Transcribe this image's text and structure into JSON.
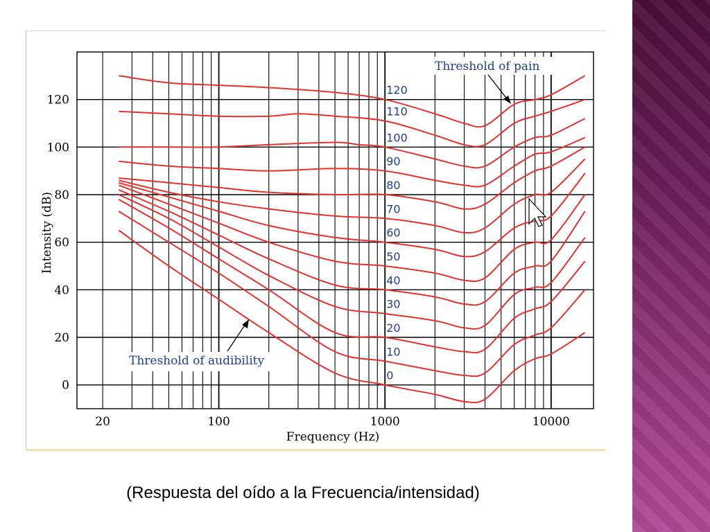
{
  "caption": "(Respuesta del oído a la Frecuencia/intensidad)",
  "colors": {
    "curve": "#e8302c",
    "annotation": "#1f3f9f",
    "grid": "#000000"
  },
  "chart_data": {
    "type": "line",
    "title": "",
    "xlabel": "Frequency (Hz)",
    "ylabel": "Intensity (dB)",
    "x_scale": "log",
    "xlim": [
      14,
      18000
    ],
    "ylim": [
      -10,
      140
    ],
    "x_tick_labels": [
      "20",
      "100",
      "1000",
      "10000"
    ],
    "x_ticks": [
      20,
      100,
      1000,
      10000
    ],
    "y_ticks": [
      0,
      20,
      40,
      60,
      80,
      100,
      120
    ],
    "y_tick_labels": [
      "0",
      "20",
      "40",
      "60",
      "80",
      "100",
      "120"
    ],
    "grid": true,
    "annotations": [
      "Threshold of pain",
      "Threshold of audibility"
    ],
    "series": [
      {
        "name": "120",
        "x": [
          25,
          50,
          100,
          200,
          500,
          1000,
          2000,
          3000,
          4000,
          6000,
          8000,
          10000,
          16000
        ],
        "values": [
          130,
          127,
          126,
          125,
          123,
          120,
          114,
          110,
          109,
          118,
          120,
          122,
          130
        ]
      },
      {
        "name": "110",
        "x": [
          25,
          50,
          100,
          200,
          300,
          500,
          1000,
          2000,
          3000,
          4000,
          6000,
          8000,
          10000,
          16000
        ],
        "values": [
          115,
          114,
          113,
          113,
          114,
          113,
          111,
          105,
          101,
          101,
          110,
          113,
          115,
          120
        ]
      },
      {
        "name": "100",
        "x": [
          25,
          50,
          100,
          200,
          500,
          700,
          1000,
          2000,
          3000,
          4000,
          6000,
          8000,
          10000,
          16000
        ],
        "values": [
          100,
          100,
          100,
          101,
          102,
          101,
          100,
          95,
          92,
          92,
          100,
          104,
          105,
          112
        ]
      },
      {
        "name": "90",
        "x": [
          25,
          50,
          100,
          200,
          500,
          1000,
          2000,
          3000,
          4000,
          6000,
          8000,
          10000,
          16000
        ],
        "values": [
          94,
          92,
          91,
          90,
          91,
          90,
          86,
          84,
          84,
          92,
          97,
          98,
          104
        ]
      },
      {
        "name": "80",
        "x": [
          25,
          50,
          100,
          200,
          500,
          1000,
          2000,
          3000,
          4000,
          6000,
          8000,
          10000,
          16000
        ],
        "values": [
          87,
          85,
          83,
          81,
          80,
          80,
          77,
          74,
          76,
          85,
          90,
          92,
          100
        ]
      },
      {
        "name": "70",
        "x": [
          25,
          50,
          100,
          200,
          500,
          1000,
          2000,
          3000,
          4000,
          6000,
          8000,
          10000,
          16000
        ],
        "values": [
          86,
          81,
          77,
          74,
          71,
          70,
          67,
          64,
          66,
          76,
          80,
          81,
          95
        ]
      },
      {
        "name": "60",
        "x": [
          25,
          50,
          100,
          200,
          500,
          1000,
          2000,
          3000,
          4000,
          6000,
          8000,
          10000,
          16000
        ],
        "values": [
          85,
          79,
          73,
          67,
          62,
          60,
          57,
          54,
          56,
          66,
          69,
          71,
          89
        ]
      },
      {
        "name": "50",
        "x": [
          25,
          50,
          100,
          200,
          500,
          1000,
          2000,
          3000,
          4000,
          6000,
          8000,
          10000,
          16000
        ],
        "values": [
          84,
          76,
          68,
          60,
          52,
          50,
          47,
          44,
          45,
          57,
          60,
          61,
          80
        ]
      },
      {
        "name": "40",
        "x": [
          25,
          50,
          100,
          200,
          500,
          1000,
          2000,
          3000,
          4000,
          6000,
          8000,
          10000,
          16000
        ],
        "values": [
          82,
          73,
          63,
          53,
          42,
          40,
          37,
          34,
          35,
          47,
          50,
          52,
          73
        ]
      },
      {
        "name": "30",
        "x": [
          25,
          50,
          100,
          200,
          500,
          1000,
          2000,
          3000,
          4000,
          6000,
          8000,
          10000,
          16000
        ],
        "values": [
          80,
          70,
          58,
          46,
          33,
          30,
          27,
          24,
          25,
          38,
          41,
          43,
          62
        ]
      },
      {
        "name": "20",
        "x": [
          25,
          50,
          100,
          200,
          500,
          1000,
          2000,
          3000,
          4000,
          6000,
          8000,
          10000,
          16000
        ],
        "values": [
          78,
          66,
          53,
          40,
          22,
          20,
          16,
          14,
          15,
          28,
          32,
          35,
          52
        ]
      },
      {
        "name": "10",
        "x": [
          25,
          50,
          100,
          200,
          500,
          1000,
          2000,
          3000,
          4000,
          6000,
          8000,
          10000,
          16000
        ],
        "values": [
          73,
          60,
          47,
          33,
          14,
          10,
          6,
          4,
          5,
          17,
          21,
          24,
          40
        ]
      },
      {
        "name": "0",
        "x": [
          25,
          50,
          100,
          200,
          500,
          1000,
          2000,
          3000,
          4000,
          6000,
          8000,
          10000,
          16000
        ],
        "values": [
          65,
          50,
          36,
          22,
          5,
          0,
          -4,
          -7,
          -6,
          6,
          11,
          13,
          22
        ]
      }
    ]
  }
}
